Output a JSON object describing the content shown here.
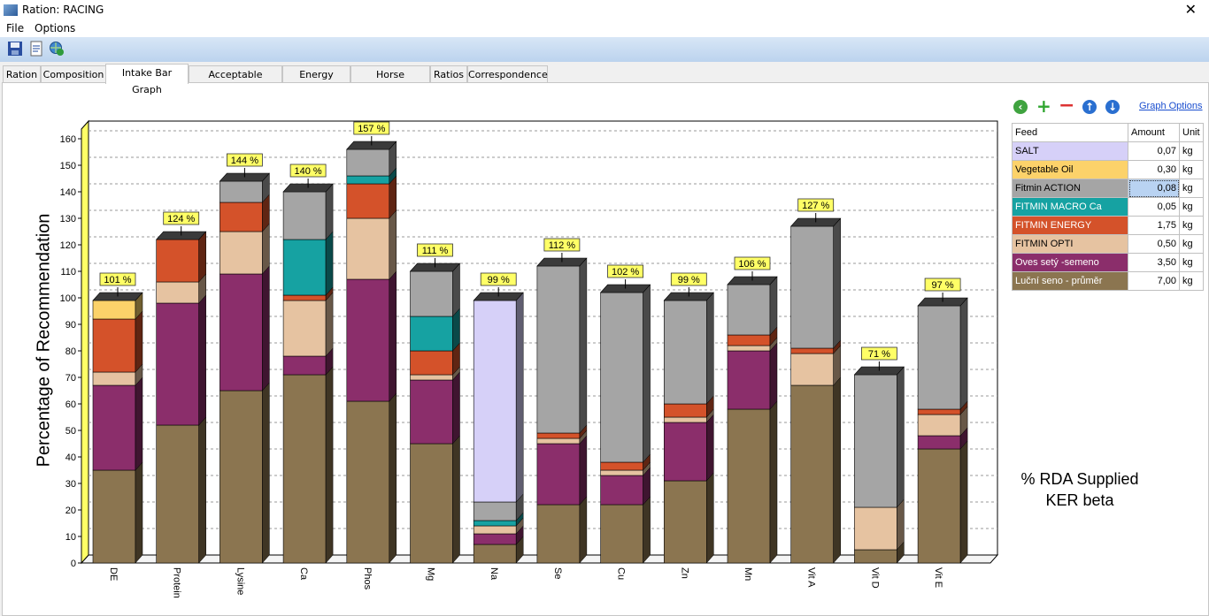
{
  "window": {
    "title": "Ration: RACING",
    "close_glyph": "✕"
  },
  "menu": {
    "items": [
      "File",
      "Options"
    ]
  },
  "toolbar": {
    "icons": [
      "save-icon",
      "export-icon",
      "globe-refresh-icon"
    ]
  },
  "tabs": [
    {
      "label": "Ration"
    },
    {
      "label": "Composition"
    },
    {
      "label": "Intake Bar Graph",
      "active": true
    },
    {
      "label": "Acceptable Ranges"
    },
    {
      "label": "Energy Graph"
    },
    {
      "label": "Horse Properties"
    },
    {
      "label": "Ratios"
    },
    {
      "label": "Correspondence"
    }
  ],
  "side_panel": {
    "icons": [
      "back-icon",
      "add-icon",
      "remove-icon",
      "move-up-icon",
      "move-down-icon"
    ],
    "graph_options_label": "Graph Options",
    "table": {
      "headers": [
        "Feed",
        "Amount",
        "Unit"
      ],
      "rows": [
        {
          "feed": "SALT",
          "amount": "0,07",
          "unit": "kg",
          "color": "#d6d0f8",
          "text": "#000000"
        },
        {
          "feed": "Vegetable Oil",
          "amount": "0,30",
          "unit": "kg",
          "color": "#fcd26a",
          "text": "#000000"
        },
        {
          "feed": "Fitmin ACTION",
          "amount": "0,08",
          "unit": "kg",
          "color": "#a5a5a5",
          "text": "#000000",
          "selected": true
        },
        {
          "feed": "FITMIN MACRO Ca",
          "amount": "0,05",
          "unit": "kg",
          "color": "#16a2a2",
          "text": "#ffffff"
        },
        {
          "feed": "FITMIN ENERGY",
          "amount": "1,75",
          "unit": "kg",
          "color": "#d4522a",
          "text": "#ffffff"
        },
        {
          "feed": "FITMIN OPTI",
          "amount": "0,50",
          "unit": "kg",
          "color": "#e6c3a1",
          "text": "#000000"
        },
        {
          "feed": "Oves setý -semeno",
          "amount": "3,50",
          "unit": "kg",
          "color": "#8b2e6b",
          "text": "#ffffff"
        },
        {
          "feed": "Luční seno - průměr",
          "amount": "7,00",
          "unit": "kg",
          "color": "#8b7550",
          "text": "#ffffff"
        }
      ]
    }
  },
  "caption": {
    "line1": "% RDA Supplied",
    "line2": "KER beta"
  },
  "chart_data": {
    "type": "bar",
    "stacked": true,
    "ylabel": "Percentage of Recommendation",
    "ylim": [
      0,
      160
    ],
    "yticks": [
      0,
      10,
      20,
      30,
      40,
      50,
      60,
      70,
      80,
      90,
      100,
      110,
      120,
      130,
      140,
      150,
      160
    ],
    "grid": true,
    "categories": [
      "DE",
      "Protein",
      "Lysine",
      "Ca",
      "Phos",
      "Mg",
      "Na",
      "Se",
      "Cu",
      "Zn",
      "Mn",
      "Vit A",
      "Vit D",
      "Vit E"
    ],
    "totals_labels": [
      "101 %",
      "124 %",
      "144 %",
      "140 %",
      "157 %",
      "111 %",
      "99 %",
      "112 %",
      "102 %",
      "99 %",
      "106 %",
      "127 %",
      "71 %",
      "97 %"
    ],
    "series": [
      {
        "name": "Luční seno - průměr",
        "color": "#8b7550",
        "values": [
          35,
          52,
          65,
          71,
          61,
          45,
          7,
          22,
          22,
          31,
          58,
          67,
          5,
          43
        ]
      },
      {
        "name": "Oves setý -semeno",
        "color": "#8b2e6b",
        "values": [
          32,
          46,
          44,
          7,
          46,
          24,
          4,
          23,
          11,
          22,
          22,
          0,
          0,
          5
        ]
      },
      {
        "name": "FITMIN OPTI",
        "color": "#e6c3a1",
        "values": [
          5,
          8,
          16,
          21,
          23,
          2,
          3,
          2,
          2,
          2,
          2,
          12,
          16,
          8
        ]
      },
      {
        "name": "FITMIN ENERGY",
        "color": "#d4522a",
        "values": [
          20,
          16,
          11,
          2,
          13,
          9,
          0,
          2,
          3,
          5,
          4,
          2,
          0,
          2
        ]
      },
      {
        "name": "FITMIN MACRO Ca",
        "color": "#16a2a2",
        "values": [
          0,
          0,
          0,
          21,
          3,
          13,
          2,
          0,
          0,
          0,
          0,
          0,
          0,
          0
        ]
      },
      {
        "name": "Fitmin ACTION",
        "color": "#a5a5a5",
        "values": [
          0,
          0,
          8,
          18,
          10,
          17,
          7,
          63,
          64,
          39,
          19,
          46,
          50,
          39
        ]
      },
      {
        "name": "Vegetable Oil",
        "color": "#fcd26a",
        "values": [
          7,
          0,
          0,
          0,
          0,
          0,
          0,
          0,
          0,
          0,
          0,
          0,
          0,
          0
        ]
      },
      {
        "name": "SALT",
        "color": "#d6d0f8",
        "values": [
          0,
          0,
          0,
          0,
          0,
          0,
          76,
          0,
          0,
          0,
          0,
          0,
          0,
          0
        ]
      }
    ]
  }
}
